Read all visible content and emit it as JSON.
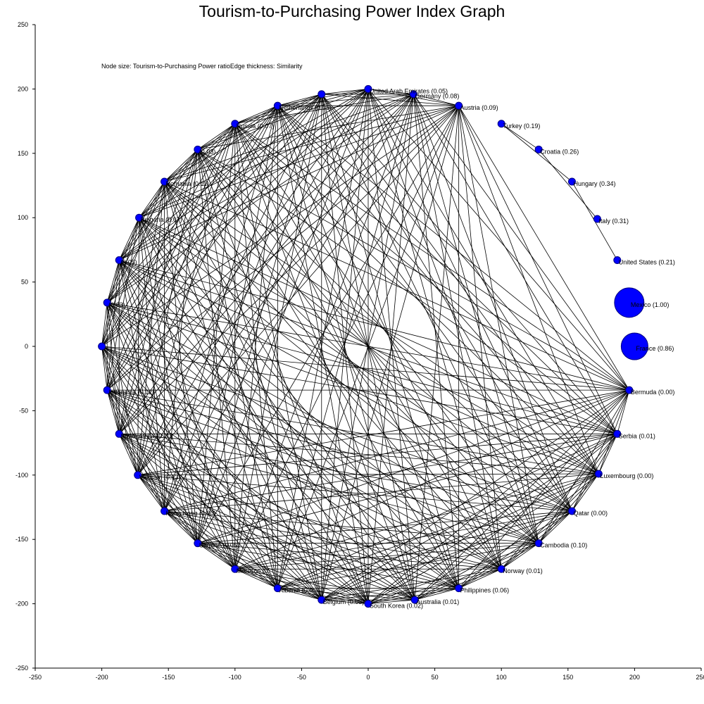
{
  "chart_data": {
    "type": "network",
    "title": "Tourism-to-Purchasing Power Index Graph",
    "annotation": "Node size: Tourism-to-Purchasing Power ratioEdge thickness: Similarity",
    "xlim": [
      -250,
      250
    ],
    "ylim": [
      -250,
      250
    ],
    "xticks": [
      -250,
      -200,
      -150,
      -100,
      -50,
      0,
      50,
      100,
      150,
      200,
      250
    ],
    "yticks": [
      -250,
      -200,
      -150,
      -100,
      -50,
      0,
      50,
      100,
      150,
      200,
      250
    ],
    "grid": false,
    "colors": {
      "node": "#0000ff",
      "node_edge": "#000080",
      "edge": "#000000"
    },
    "nodes": [
      {
        "name": "Mexico",
        "value": 1.0,
        "label": "Mexico (1.00)",
        "x": 196,
        "y": 34
      },
      {
        "name": "France",
        "value": 0.86,
        "label": "France (0.86)",
        "x": 200,
        "y": 0
      },
      {
        "name": "Turkey",
        "value": 0.19,
        "label": "Turkey (0.19)",
        "x": 100,
        "y": 173
      },
      {
        "name": "Croatia",
        "value": 0.26,
        "label": "Croatia (0.26)",
        "x": 128,
        "y": 153
      },
      {
        "name": "Hungary",
        "value": 0.34,
        "label": "Hungary (0.34)",
        "x": 153,
        "y": 128
      },
      {
        "name": "Italy",
        "value": 0.31,
        "label": "Italy (0.31)",
        "x": 172,
        "y": 99
      },
      {
        "name": "United States",
        "value": 0.21,
        "label": "United States (0.21)",
        "x": 187,
        "y": 67
      },
      {
        "name": "Bermuda",
        "value": 0.0,
        "label": "Bermuda (0.00)",
        "x": 196,
        "y": -34
      },
      {
        "name": "Serbia",
        "value": 0.01,
        "label": "Serbia (0.01)",
        "x": 187,
        "y": -68
      },
      {
        "name": "Luxembourg",
        "value": 0.0,
        "label": "Luxembourg (0.00)",
        "x": 173,
        "y": -99
      },
      {
        "name": "Qatar",
        "value": 0.0,
        "label": "Qatar (0.00)",
        "x": 153,
        "y": -128
      },
      {
        "name": "Cambodia",
        "value": 0.1,
        "label": "Cambodia (0.10)",
        "x": 128,
        "y": -153
      },
      {
        "name": "Norway",
        "value": 0.01,
        "label": "Norway (0.01)",
        "x": 100,
        "y": -173
      },
      {
        "name": "Philippines",
        "value": 0.06,
        "label": "Philippines (0.06)",
        "x": 68,
        "y": -188
      },
      {
        "name": "Australia",
        "value": 0.01,
        "label": "Australia (0.01)",
        "x": 35,
        "y": -197
      },
      {
        "name": "South Korea",
        "value": 0.02,
        "label": "South Korea (0.02)",
        "x": 0,
        "y": -200
      },
      {
        "name": "Belgium",
        "value": 0.03,
        "label": "Belgium (0.03)",
        "x": -35,
        "y": -197
      },
      {
        "name": "Albania",
        "value": null,
        "label": "Albania (0.0",
        "x": -68,
        "y": -188
      },
      {
        "name": "Morocco",
        "value": null,
        "label": "Morocco (0.",
        "x": -100,
        "y": -173
      },
      {
        "name": "Ukraine",
        "value": 0.05,
        "label": "Ukraine (0.05)",
        "x": -128,
        "y": -153
      },
      {
        "name": "Hong Kong",
        "value": 0.0,
        "label": "Hong Kong (0.00)",
        "x": -153,
        "y": -128
      },
      {
        "name": "Vietnam",
        "value": 0.13,
        "label": "Vietnam (0.13)",
        "x": -173,
        "y": -100
      },
      {
        "name": "South Africa",
        "value": 0.1,
        "label": "South Africa (0.10)",
        "x": -187,
        "y": -68
      },
      {
        "name": "Indonesia",
        "value": 0.12,
        "label": "Indonesia (0.12)",
        "x": -196,
        "y": -34
      },
      {
        "name": "node-w",
        "value": null,
        "label": "",
        "x": -200,
        "y": 0
      },
      {
        "name": "node-wnw",
        "value": 0.03,
        "label": "(0.03)",
        "x": -196,
        "y": 34
      },
      {
        "name": "node-nw1",
        "value": 0.05,
        "label": "(0.05)",
        "x": -187,
        "y": 67
      },
      {
        "name": "Bulgaria",
        "value": 0.07,
        "label": "Bulgaria (0.07)",
        "x": -172,
        "y": 100
      },
      {
        "name": "Romania",
        "value": 0.11,
        "label": "Romania (0.11)",
        "x": -153,
        "y": 128
      },
      {
        "name": "node-nw2",
        "value": 0.03,
        "label": "(0.03)",
        "x": -128,
        "y": 153
      },
      {
        "name": "Russia",
        "value": 0.07,
        "label": "Russia (0.07)",
        "x": -100,
        "y": 173
      },
      {
        "name": "Netherlands",
        "value": 0.05,
        "label": "Netherlands (0.05)",
        "x": -68,
        "y": 187
      },
      {
        "name": "node-n1",
        "value": null,
        "label": "",
        "x": -35,
        "y": 196
      },
      {
        "name": "United Arab Emirates",
        "value": 0.05,
        "label": "United Arab Emirates (0.05)",
        "x": 0,
        "y": 200
      },
      {
        "name": "Germany",
        "value": 0.08,
        "label": "Germany (0.08)",
        "x": 34,
        "y": 196
      },
      {
        "name": "Austria",
        "value": 0.09,
        "label": "Austria (0.09)",
        "x": 68,
        "y": 187
      }
    ]
  }
}
